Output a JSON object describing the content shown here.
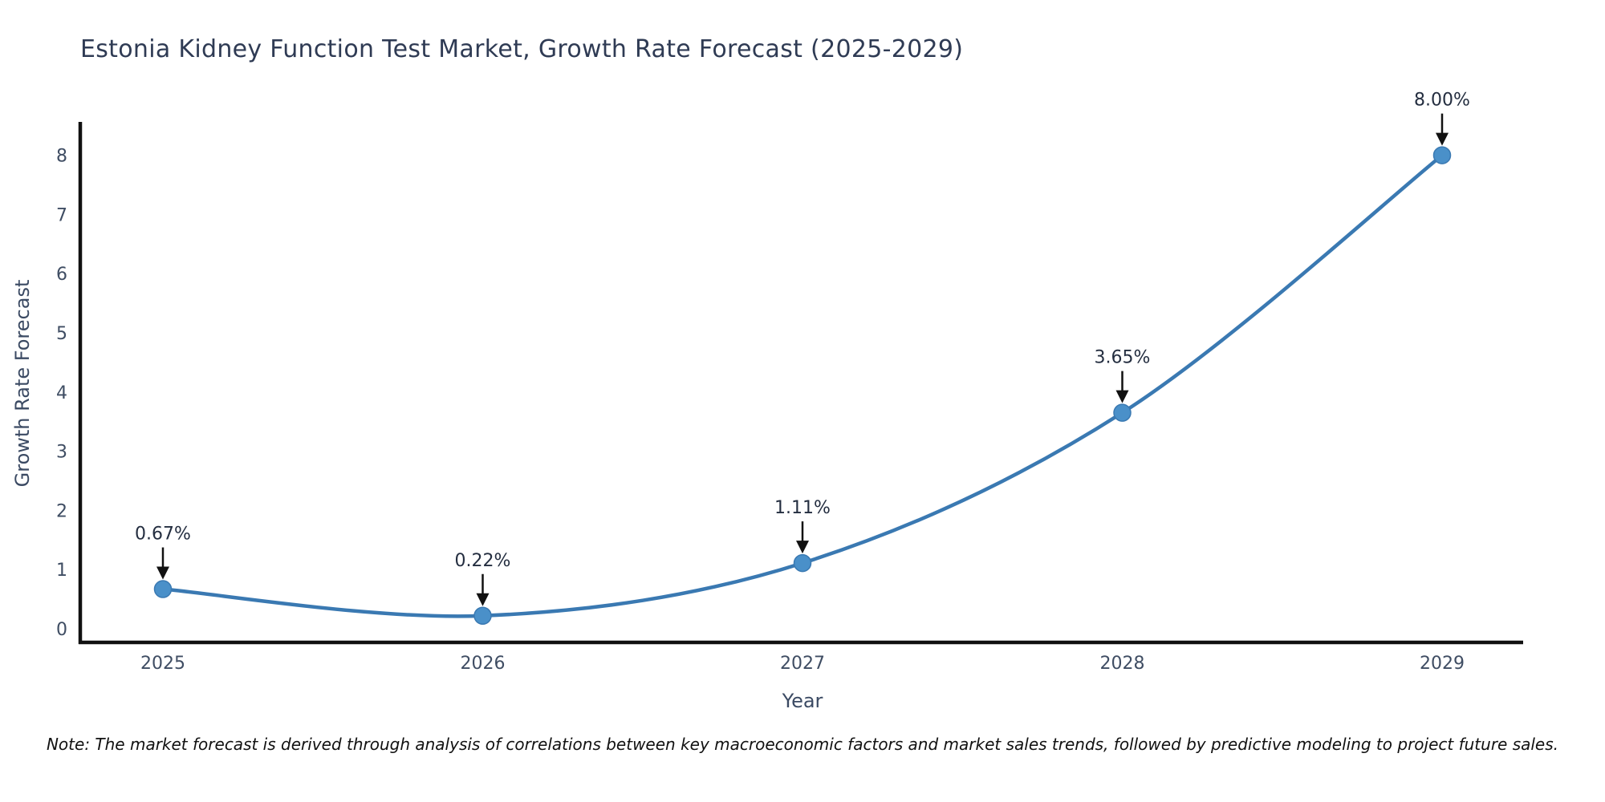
{
  "chart_data": {
    "type": "line",
    "title": "Estonia Kidney Function Test Market, Growth Rate Forecast (2025-2029)",
    "xlabel": "Year",
    "ylabel": "Growth Rate Forecast",
    "x": [
      2025,
      2026,
      2027,
      2028,
      2029
    ],
    "series": [
      {
        "name": "Growth Rate Forecast",
        "values": [
          0.67,
          0.22,
          1.11,
          3.65,
          8.0
        ]
      }
    ],
    "point_labels": [
      "0.67%",
      "0.22%",
      "1.11%",
      "3.65%",
      "8.00%"
    ],
    "yticks": [
      0,
      1,
      2,
      3,
      4,
      5,
      6,
      7,
      8
    ],
    "ylim": [
      -0.25,
      8.8
    ],
    "grid": false,
    "legend_position": "none",
    "line_shape": "spline",
    "line_color": "#3a79b2",
    "marker_color": "#4a90c9",
    "axis_color": "#111111",
    "annotation_arrow_color": "#111111"
  },
  "note": "Note: The market forecast is derived through analysis of correlations between key macroeconomic factors and market sales trends, followed by predictive modeling to project future sales."
}
